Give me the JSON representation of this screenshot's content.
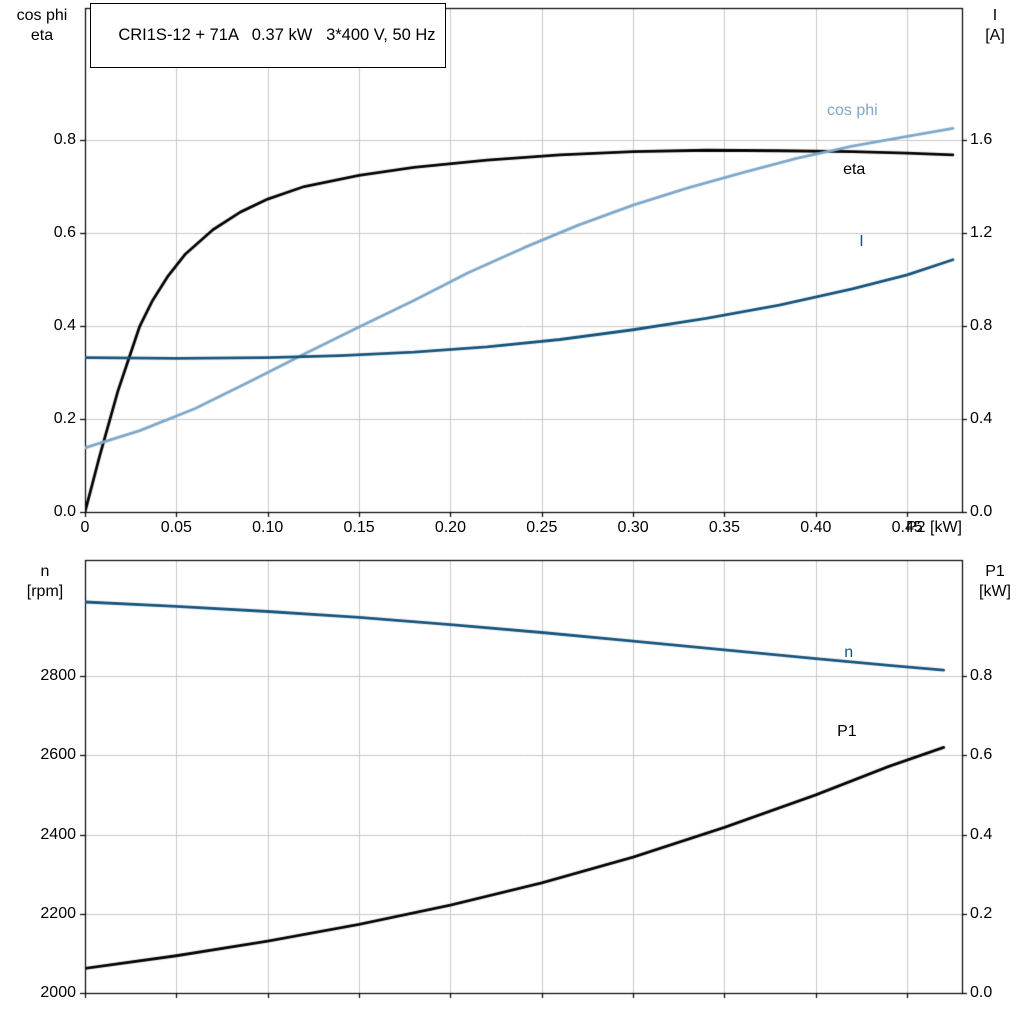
{
  "title_box": "CRI1S-12 + 71A   0.37 kW   3*400 V, 50 Hz",
  "axis_labels": {
    "top_left_line1": "cos phi",
    "top_left_line2": "eta",
    "top_right_line1": "I",
    "top_right_line2": "[A]",
    "bottom_left_line1": "n",
    "bottom_left_line2": "[rpm]",
    "bottom_right_line1": "P1",
    "bottom_right_line2": "[kW]",
    "x_label": "P2 [kW]"
  },
  "colors": {
    "grid": "#c9c9c9",
    "frame": "#000000",
    "black_curve": "#000000",
    "light_blue_curve": "#7ea7c9",
    "dark_blue_curve": "#15527b"
  },
  "chart_data": [
    {
      "type": "line",
      "title": "CRI1S-12 + 71A   0.37 kW   3*400 V, 50 Hz",
      "xlabel": "P2 [kW]",
      "xlim": [
        0,
        0.48
      ],
      "x_ticks": [
        0,
        0.05,
        0.1,
        0.15,
        0.2,
        0.25,
        0.3,
        0.35,
        0.4,
        0.45
      ],
      "x_tick_labels": [
        "0",
        "0.05",
        "0.10",
        "0.15",
        "0.20",
        "0.25",
        "0.30",
        "0.35",
        "0.40",
        "0.45"
      ],
      "show_x_tick_labels": true,
      "grid": true,
      "left_axis": {
        "title": "cos phi / eta",
        "lim": [
          0,
          1.084
        ],
        "ticks": [
          0,
          0.2,
          0.4,
          0.6,
          0.8
        ],
        "tick_labels": [
          "0.0",
          "0.2",
          "0.4",
          "0.6",
          "0.8"
        ]
      },
      "right_axis": {
        "title": "I [A]",
        "lim": [
          0,
          2.168
        ],
        "ticks": [
          0,
          0.4,
          0.8,
          1.2,
          1.6
        ],
        "tick_labels": [
          "0.0",
          "0.4",
          "0.8",
          "1.2",
          "1.6"
        ]
      },
      "series": [
        {
          "name": "eta",
          "label": "eta",
          "axis": "left",
          "color": "#000000",
          "label_x": 0.421,
          "label_y": 0.735,
          "x": [
            0,
            0.004,
            0.008,
            0.013,
            0.018,
            0.024,
            0.03,
            0.037,
            0.045,
            0.055,
            0.07,
            0.085,
            0.1,
            0.12,
            0.15,
            0.18,
            0.22,
            0.26,
            0.3,
            0.34,
            0.38,
            0.42,
            0.45,
            0.475
          ],
          "y": [
            0,
            0.06,
            0.12,
            0.19,
            0.26,
            0.33,
            0.4,
            0.455,
            0.505,
            0.555,
            0.607,
            0.645,
            0.673,
            0.7,
            0.724,
            0.741,
            0.757,
            0.768,
            0.775,
            0.778,
            0.777,
            0.775,
            0.772,
            0.768
          ]
        },
        {
          "name": "cos-phi",
          "label": "cos phi",
          "axis": "left",
          "color": "#7ea7c9",
          "label_x": 0.42,
          "label_y": 0.862,
          "x": [
            0,
            0.03,
            0.06,
            0.09,
            0.12,
            0.15,
            0.18,
            0.21,
            0.24,
            0.27,
            0.3,
            0.33,
            0.36,
            0.39,
            0.42,
            0.45,
            0.475
          ],
          "y": [
            0.138,
            0.175,
            0.222,
            0.28,
            0.34,
            0.398,
            0.455,
            0.515,
            0.568,
            0.617,
            0.66,
            0.697,
            0.73,
            0.761,
            0.787,
            0.808,
            0.825
          ]
        },
        {
          "name": "current",
          "label": "I",
          "axis": "right",
          "color": "#15527b",
          "label_x": 0.425,
          "label_y": 1.16,
          "x": [
            0,
            0.05,
            0.1,
            0.14,
            0.18,
            0.22,
            0.26,
            0.3,
            0.34,
            0.38,
            0.42,
            0.45,
            0.475
          ],
          "y": [
            0.664,
            0.661,
            0.664,
            0.673,
            0.688,
            0.71,
            0.742,
            0.784,
            0.833,
            0.89,
            0.96,
            1.02,
            1.085
          ]
        }
      ]
    },
    {
      "type": "line",
      "title": "",
      "xlabel": "",
      "xlim": [
        0,
        0.48
      ],
      "x_ticks": [
        0,
        0.05,
        0.1,
        0.15,
        0.2,
        0.25,
        0.3,
        0.35,
        0.4,
        0.45
      ],
      "x_tick_labels": [],
      "show_x_tick_labels": false,
      "grid": true,
      "left_axis": {
        "title": "n [rpm]",
        "lim": [
          2000,
          3093
        ],
        "ticks": [
          2000,
          2200,
          2400,
          2600,
          2800
        ],
        "tick_labels": [
          "2000",
          "2200",
          "2400",
          "2600",
          "2800"
        ]
      },
      "right_axis": {
        "title": "P1 [kW]",
        "lim": [
          0,
          1.093
        ],
        "ticks": [
          0,
          0.2,
          0.4,
          0.6,
          0.8
        ],
        "tick_labels": [
          "0.0",
          "0.2",
          "0.4",
          "0.6",
          "0.8"
        ]
      },
      "series": [
        {
          "name": "speed",
          "label": "n",
          "axis": "left",
          "color": "#15527b",
          "label_x": 0.418,
          "label_y": 2858,
          "x": [
            0,
            0.05,
            0.1,
            0.15,
            0.2,
            0.25,
            0.3,
            0.35,
            0.4,
            0.44,
            0.47
          ],
          "y": [
            2987,
            2976,
            2963,
            2948,
            2930,
            2910,
            2888,
            2866,
            2844,
            2827,
            2815
          ]
        },
        {
          "name": "p1",
          "label": "P1",
          "axis": "right",
          "color": "#000000",
          "label_x": 0.417,
          "label_y": 0.66,
          "x": [
            0,
            0.05,
            0.1,
            0.15,
            0.2,
            0.25,
            0.3,
            0.35,
            0.4,
            0.44,
            0.47
          ],
          "y": [
            0.062,
            0.094,
            0.131,
            0.173,
            0.222,
            0.278,
            0.343,
            0.418,
            0.5,
            0.572,
            0.62
          ]
        }
      ]
    }
  ]
}
